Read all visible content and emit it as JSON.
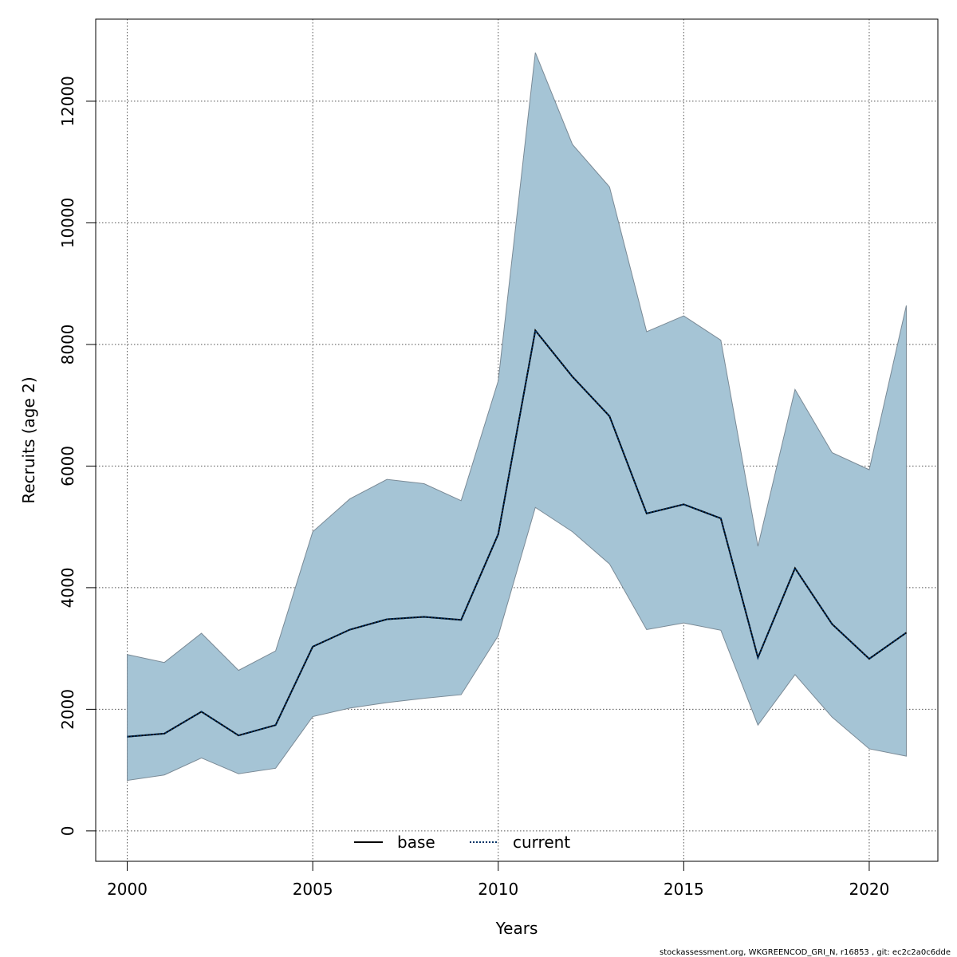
{
  "chart_data": {
    "type": "area",
    "xlabel": "Years",
    "ylabel": "Recruits (age 2)",
    "xlim": [
      1999.15,
      2021.85
    ],
    "ylim": [
      -500,
      13350
    ],
    "x_ticks": [
      2000,
      2005,
      2010,
      2015,
      2020
    ],
    "y_ticks": [
      0,
      2000,
      4000,
      6000,
      8000,
      10000,
      12000
    ],
    "grid": true,
    "legend_position": "bottom-center",
    "x": [
      2000,
      2001,
      2002,
      2003,
      2004,
      2005,
      2006,
      2007,
      2008,
      2009,
      2010,
      2011,
      2012,
      2013,
      2014,
      2015,
      2016,
      2017,
      2018,
      2019,
      2020,
      2021
    ],
    "band": {
      "upper": [
        2900,
        2770,
        3250,
        2640,
        2960,
        4920,
        5460,
        5780,
        5710,
        5430,
        7400,
        12800,
        11290,
        10590,
        8210,
        8470,
        8070,
        4680,
        7260,
        6220,
        5940,
        8640
      ],
      "lower": [
        830,
        920,
        1200,
        940,
        1030,
        1880,
        2020,
        2110,
        2180,
        2240,
        3210,
        5320,
        4920,
        4390,
        3310,
        3420,
        3300,
        1740,
        2570,
        1870,
        1350,
        1230
      ],
      "color": "#a5c4d5",
      "edge_color": "#7a8a96"
    },
    "series": [
      {
        "name": "base",
        "values": [
          1550,
          1600,
          1960,
          1570,
          1740,
          3030,
          3310,
          3480,
          3520,
          3470,
          4880,
          8230,
          7470,
          6820,
          5220,
          5370,
          5140,
          2850,
          4320,
          3400,
          2830,
          3260
        ],
        "color": "#000000",
        "style": "solid"
      },
      {
        "name": "current",
        "values": [
          1550,
          1600,
          1960,
          1570,
          1740,
          3030,
          3310,
          3480,
          3520,
          3470,
          4880,
          8230,
          7470,
          6820,
          5220,
          5370,
          5140,
          2850,
          4320,
          3400,
          2830,
          3260
        ],
        "color": "#003366",
        "style": "dotted"
      }
    ]
  },
  "footer": "stockassessment.org, WKGREENCOD_GRI_N, r16853 , git: ec2c2a0c6dde"
}
